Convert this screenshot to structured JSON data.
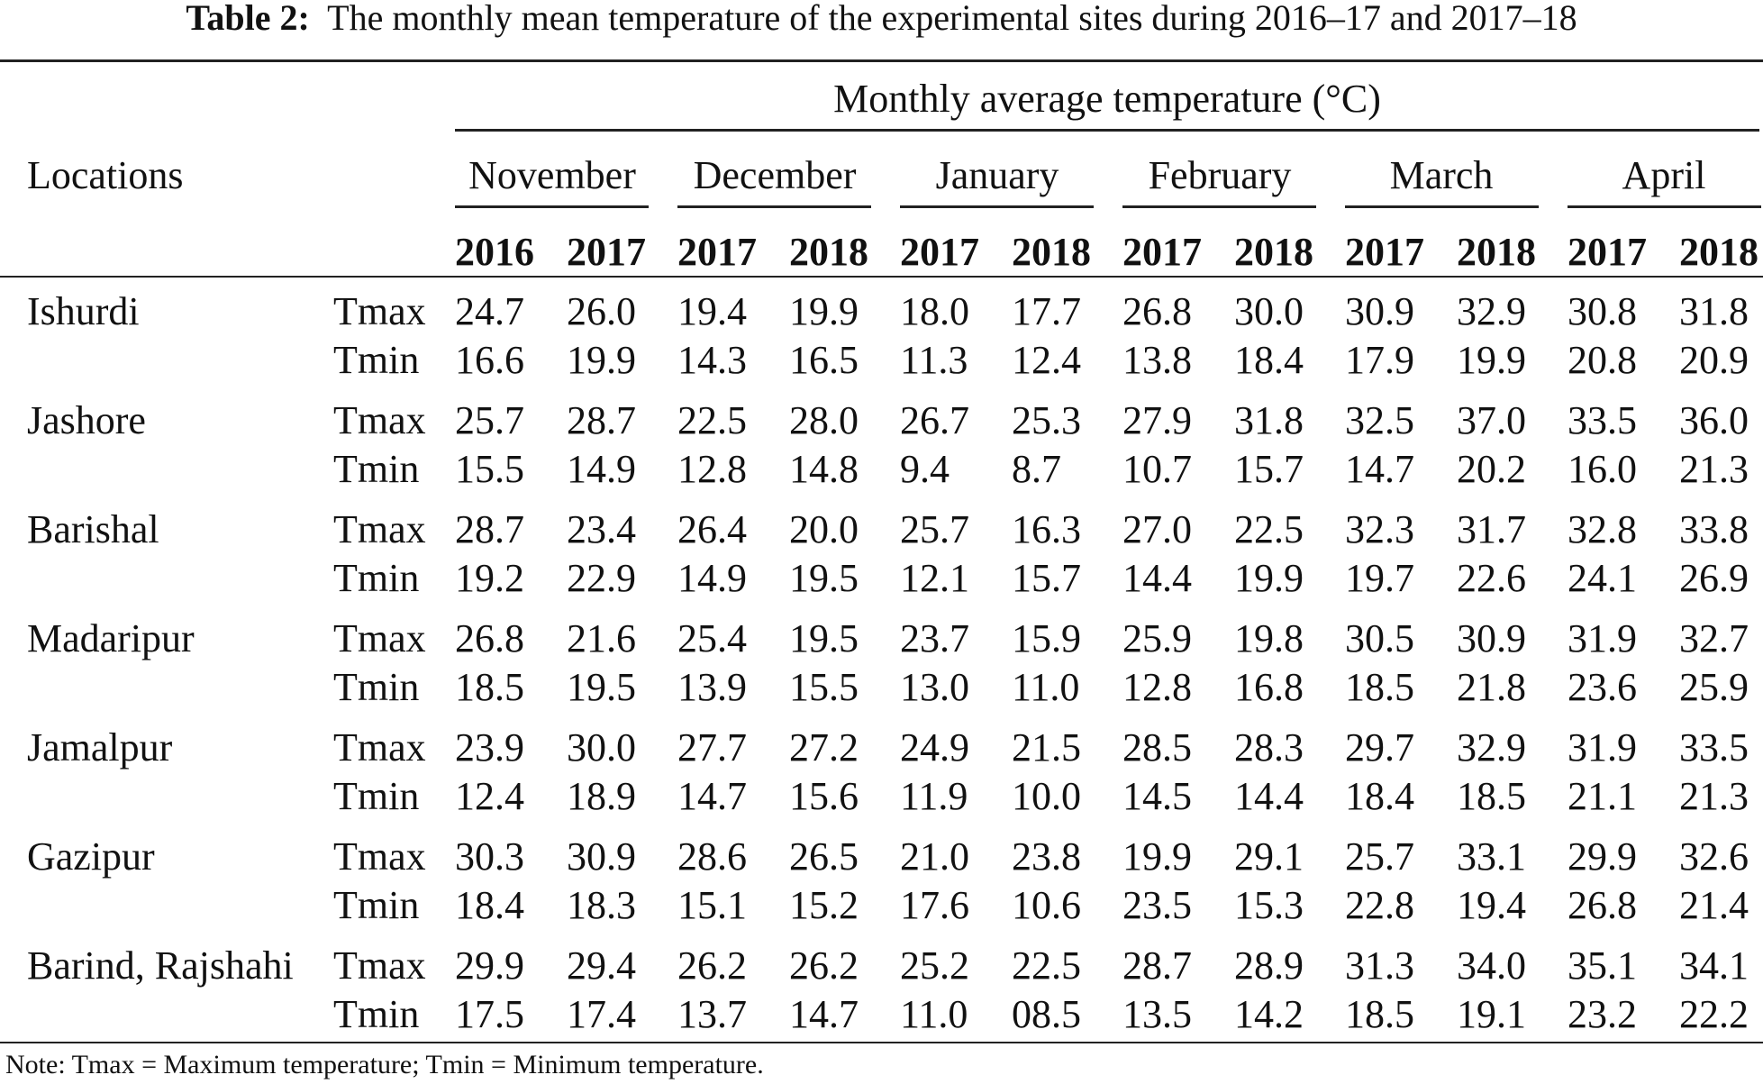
{
  "table": {
    "label": "Table 2:",
    "caption": "The monthly mean temperature of the experimental sites during 2016–17 and 2017–18",
    "locations_header": "Locations",
    "group_header": "Monthly average temperature (°C)",
    "months": [
      {
        "name": "November",
        "years": [
          "2016",
          "2017"
        ]
      },
      {
        "name": "December",
        "years": [
          "2017",
          "2018"
        ]
      },
      {
        "name": "January",
        "years": [
          "2017",
          "2018"
        ]
      },
      {
        "name": "February",
        "years": [
          "2017",
          "2018"
        ]
      },
      {
        "name": "March",
        "years": [
          "2017",
          "2018"
        ]
      },
      {
        "name": "April",
        "years": [
          "2017",
          "2018"
        ]
      }
    ],
    "rows": [
      {
        "location": "Ishurdi",
        "tmax": {
          "label": "Tmax",
          "values": [
            "24.7",
            "26.0",
            "19.4",
            "19.9",
            "18.0",
            "17.7",
            "26.8",
            "30.0",
            "30.9",
            "32.9",
            "30.8",
            "31.8"
          ]
        },
        "tmin": {
          "label": "Tmin",
          "values": [
            "16.6",
            "19.9",
            "14.3",
            "16.5",
            "11.3",
            "12.4",
            "13.8",
            "18.4",
            "17.9",
            "19.9",
            "20.8",
            "20.9"
          ]
        }
      },
      {
        "location": "Jashore",
        "tmax": {
          "label": "Tmax",
          "values": [
            "25.7",
            "28.7",
            "22.5",
            "28.0",
            "26.7",
            "25.3",
            "27.9",
            "31.8",
            "32.5",
            "37.0",
            "33.5",
            "36.0"
          ]
        },
        "tmin": {
          "label": "Tmin",
          "values": [
            "15.5",
            "14.9",
            "12.8",
            "14.8",
            "9.4",
            "8.7",
            "10.7",
            "15.7",
            "14.7",
            "20.2",
            "16.0",
            "21.3"
          ]
        }
      },
      {
        "location": "Barishal",
        "tmax": {
          "label": "Tmax",
          "values": [
            "28.7",
            "23.4",
            "26.4",
            "20.0",
            "25.7",
            "16.3",
            "27.0",
            "22.5",
            "32.3",
            "31.7",
            "32.8",
            "33.8"
          ]
        },
        "tmin": {
          "label": "Tmin",
          "values": [
            "19.2",
            "22.9",
            "14.9",
            "19.5",
            "12.1",
            "15.7",
            "14.4",
            "19.9",
            "19.7",
            "22.6",
            "24.1",
            "26.9"
          ]
        }
      },
      {
        "location": "Madaripur",
        "tmax": {
          "label": "Tmax",
          "values": [
            "26.8",
            "21.6",
            "25.4",
            "19.5",
            "23.7",
            "15.9",
            "25.9",
            "19.8",
            "30.5",
            "30.9",
            "31.9",
            "32.7"
          ]
        },
        "tmin": {
          "label": "Tmin",
          "values": [
            "18.5",
            "19.5",
            "13.9",
            "15.5",
            "13.0",
            "11.0",
            "12.8",
            "16.8",
            "18.5",
            "21.8",
            "23.6",
            "25.9"
          ]
        }
      },
      {
        "location": "Jamalpur",
        "tmax": {
          "label": "Tmax",
          "values": [
            "23.9",
            "30.0",
            "27.7",
            "27.2",
            "24.9",
            "21.5",
            "28.5",
            "28.3",
            "29.7",
            "32.9",
            "31.9",
            "33.5"
          ]
        },
        "tmin": {
          "label": "Tmin",
          "values": [
            "12.4",
            "18.9",
            "14.7",
            "15.6",
            "11.9",
            "10.0",
            "14.5",
            "14.4",
            "18.4",
            "18.5",
            "21.1",
            "21.3"
          ]
        }
      },
      {
        "location": "Gazipur",
        "tmax": {
          "label": "Tmax",
          "values": [
            "30.3",
            "30.9",
            "28.6",
            "26.5",
            "21.0",
            "23.8",
            "19.9",
            "29.1",
            "25.7",
            "33.1",
            "29.9",
            "32.6"
          ]
        },
        "tmin": {
          "label": "Tmin",
          "values": [
            "18.4",
            "18.3",
            "15.1",
            "15.2",
            "17.6",
            "10.6",
            "23.5",
            "15.3",
            "22.8",
            "19.4",
            "26.8",
            "21.4"
          ]
        }
      },
      {
        "location": "Barind, Rajshahi",
        "tmax": {
          "label": "Tmax",
          "values": [
            "29.9",
            "29.4",
            "26.2",
            "26.2",
            "25.2",
            "22.5",
            "28.7",
            "28.9",
            "31.3",
            "34.0",
            "35.1",
            "34.1"
          ]
        },
        "tmin": {
          "label": "Tmin",
          "values": [
            "17.5",
            "17.4",
            "13.7",
            "14.7",
            "11.0",
            "08.5",
            "13.5",
            "14.2",
            "18.5",
            "19.1",
            "23.2",
            "22.2"
          ]
        }
      }
    ],
    "note": "Note: Tmax = Maximum temperature; Tmin = Minimum temperature."
  }
}
